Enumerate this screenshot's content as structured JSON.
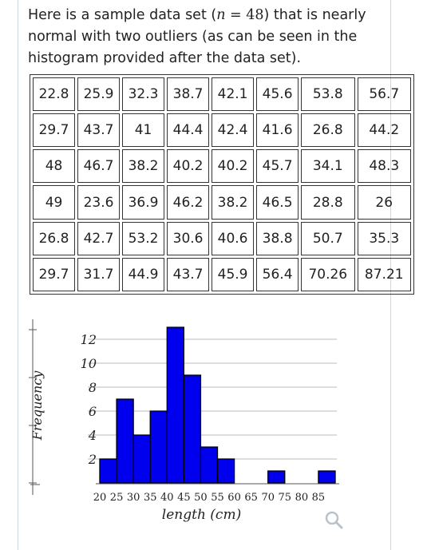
{
  "intro": {
    "part1": "Here is a sample data set (",
    "n_var": "n",
    "eq": " = 48",
    "part2": ") that is nearly normal with two outliers (as can be seen in the histogram provided after the data set)."
  },
  "table": {
    "rows": [
      [
        "22.8",
        "25.9",
        "32.3",
        "38.7",
        "42.1",
        "45.6",
        "53.8",
        "56.7"
      ],
      [
        "29.7",
        "43.7",
        "41",
        "44.4",
        "42.4",
        "41.6",
        "26.8",
        "44.2"
      ],
      [
        "48",
        "46.7",
        "38.2",
        "40.2",
        "40.2",
        "45.7",
        "34.1",
        "48.3"
      ],
      [
        "49",
        "23.6",
        "36.9",
        "46.2",
        "38.2",
        "46.5",
        "28.8",
        "26"
      ],
      [
        "26.8",
        "42.7",
        "53.2",
        "30.6",
        "40.6",
        "38.8",
        "50.7",
        "35.3"
      ],
      [
        "29.7",
        "31.7",
        "44.9",
        "43.7",
        "45.9",
        "56.4",
        "70.26",
        "87.21"
      ]
    ]
  },
  "chart_data": {
    "type": "bar",
    "xlabel": "length (cm)",
    "ylabel": "Frequency",
    "x_ticks": [
      "20",
      "25",
      "30",
      "35",
      "40",
      "45",
      "50",
      "55",
      "60",
      "65",
      "70",
      "75",
      "80",
      "85"
    ],
    "y_ticks": [
      "2",
      "4",
      "6",
      "8",
      "10",
      "12"
    ],
    "bins": [
      {
        "start": 20,
        "end": 25,
        "count": 2
      },
      {
        "start": 25,
        "end": 30,
        "count": 7
      },
      {
        "start": 30,
        "end": 35,
        "count": 4
      },
      {
        "start": 35,
        "end": 40,
        "count": 6
      },
      {
        "start": 40,
        "end": 45,
        "count": 13
      },
      {
        "start": 45,
        "end": 50,
        "count": 9
      },
      {
        "start": 50,
        "end": 55,
        "count": 3
      },
      {
        "start": 55,
        "end": 60,
        "count": 2
      },
      {
        "start": 60,
        "end": 65,
        "count": 0
      },
      {
        "start": 65,
        "end": 70,
        "count": 0
      },
      {
        "start": 70,
        "end": 75,
        "count": 1
      },
      {
        "start": 75,
        "end": 80,
        "count": 0
      },
      {
        "start": 80,
        "end": 85,
        "count": 0
      },
      {
        "start": 85,
        "end": 90,
        "count": 1
      }
    ],
    "xlim": [
      20,
      90
    ],
    "ylim": [
      0,
      13
    ],
    "bar_color": "#0000ee",
    "grid": true
  },
  "zoom_icon": "magnifier-icon"
}
